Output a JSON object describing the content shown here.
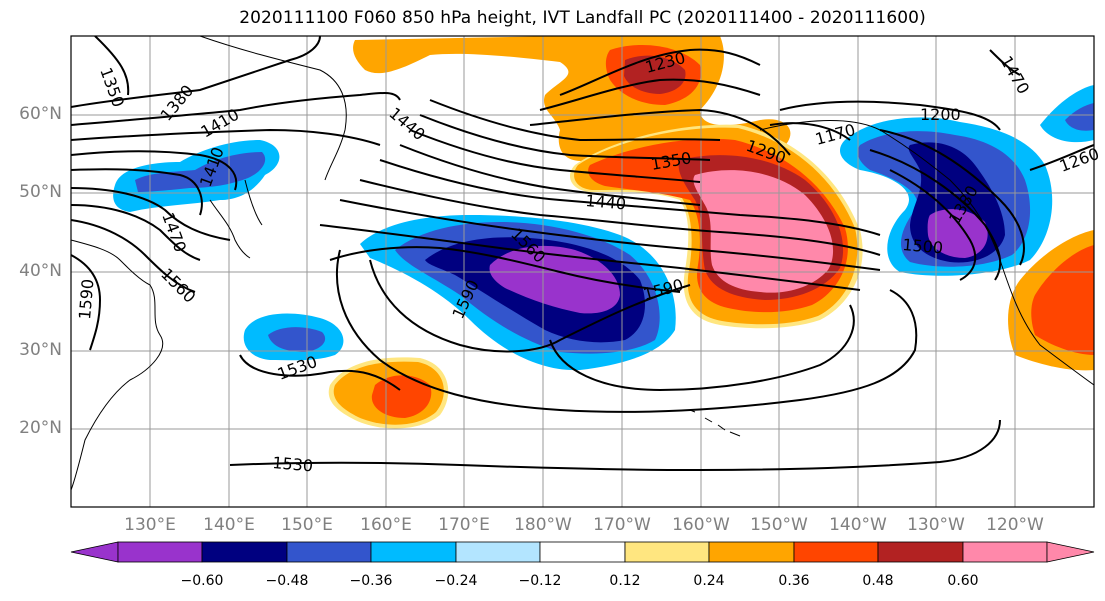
{
  "title": "2020111100 F060 850 hPa height, IVT Landfall PC (2020111400 - 2020111600)",
  "latitude_labels": [
    "60°N",
    "50°N",
    "40°N",
    "30°N",
    "20°N"
  ],
  "longitude_labels": [
    "130°E",
    "140°E",
    "150°E",
    "160°E",
    "170°E",
    "180°W",
    "170°W",
    "160°W",
    "150°W",
    "140°W",
    "130°W",
    "120°W"
  ],
  "contour_labels": [
    "1350",
    "1380",
    "1410",
    "1440",
    "1230",
    "1200",
    "1170",
    "1290",
    "1350",
    "1260",
    "1410",
    "1470",
    "1440",
    "1560",
    "1590",
    "1560",
    "1590",
    "1530",
    "1530",
    "1380",
    "1470",
    "1590",
    "1500"
  ],
  "colorbar": {
    "ticks": [
      "−0.60",
      "−0.48",
      "−0.36",
      "−0.24",
      "−0.12",
      "0.12",
      "0.24",
      "0.36",
      "0.48",
      "0.60"
    ],
    "colors": [
      "#9933cc",
      "#000080",
      "#3355cc",
      "#00bbff",
      "#b3e5ff",
      "#ffffff",
      "#ffe680",
      "#ffa500",
      "#ff4500",
      "#b22222",
      "#ff88aa"
    ]
  }
}
